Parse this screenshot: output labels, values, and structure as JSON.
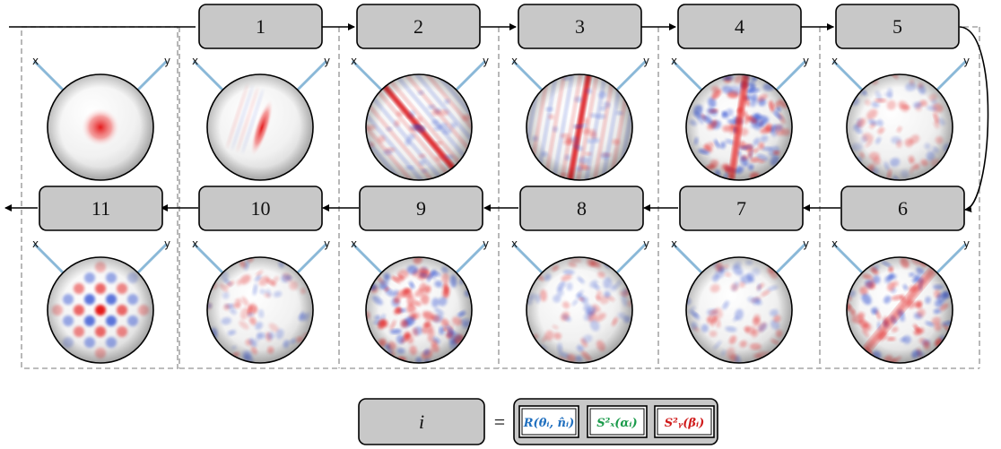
{
  "steps": [
    {
      "label": "1"
    },
    {
      "label": "2"
    },
    {
      "label": "3"
    },
    {
      "label": "4"
    },
    {
      "label": "5"
    },
    {
      "label": "6"
    },
    {
      "label": "7"
    },
    {
      "label": "8"
    },
    {
      "label": "9"
    },
    {
      "label": "10"
    },
    {
      "label": "11"
    }
  ],
  "axes": {
    "x_label": "x",
    "y_label": "y"
  },
  "legend": {
    "index_label": "i",
    "equals": "=",
    "gates": [
      {
        "text": "R(θᵢ, n̂ᵢ)",
        "color": "#1f6fbf"
      },
      {
        "text": "S²ₓ(αᵢ)",
        "color": "#1a9a4a"
      },
      {
        "text": "S²ᵧ(βᵢ)",
        "color": "#d01c1c"
      }
    ]
  },
  "colors": {
    "box_fill": "#c8c8c8",
    "axis_line": "#8ab8d8",
    "positive": "#e41a1c",
    "negative": "#2b4bd0"
  },
  "spheres": [
    {
      "name": "initial-state-sphere",
      "pattern": "center-spot"
    },
    {
      "name": "sphere-after-step-1",
      "pattern": "squeezed-ellipse"
    },
    {
      "name": "sphere-after-step-2",
      "pattern": "diagonal-band"
    },
    {
      "name": "sphere-after-step-3",
      "pattern": "vertical-band"
    },
    {
      "name": "sphere-after-step-4",
      "pattern": "dense-speckle"
    },
    {
      "name": "sphere-after-step-5",
      "pattern": "light-speckle"
    },
    {
      "name": "sphere-after-step-6",
      "pattern": "speckle-diagonal"
    },
    {
      "name": "sphere-after-step-7",
      "pattern": "light-speckle"
    },
    {
      "name": "sphere-after-step-8",
      "pattern": "light-speckle"
    },
    {
      "name": "sphere-after-step-9",
      "pattern": "dense-speckle"
    },
    {
      "name": "sphere-after-step-10",
      "pattern": "light-speckle"
    },
    {
      "name": "sphere-after-step-11",
      "pattern": "lattice"
    }
  ]
}
